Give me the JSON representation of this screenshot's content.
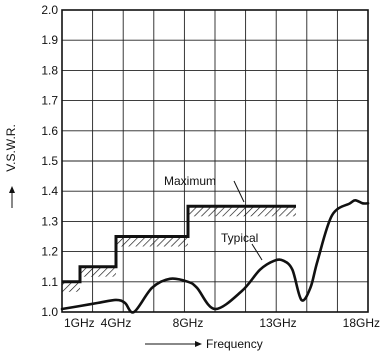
{
  "chart_data": {
    "type": "line",
    "xlabel": "Frequency",
    "ylabel": "V.S.W.R.",
    "x_tick_labels": [
      "1GHz",
      "4GHz",
      "8GHz",
      "13GHz",
      "18GHz"
    ],
    "x_tick_values": [
      1,
      4,
      8,
      13,
      18
    ],
    "ylim": [
      1.0,
      2.0
    ],
    "y_ticks": [
      "1.0",
      "1.1",
      "1.2",
      "1.3",
      "1.4",
      "1.5",
      "1.6",
      "1.7",
      "1.8",
      "1.9",
      "2.0"
    ],
    "grid": true,
    "series": [
      {
        "name": "Maximum",
        "style": "step",
        "x": [
          1,
          2,
          2,
          4,
          4,
          8,
          8,
          14
        ],
        "y": [
          1.1,
          1.1,
          1.15,
          1.15,
          1.25,
          1.25,
          1.35,
          1.35
        ]
      },
      {
        "name": "Typical",
        "style": "smooth",
        "x": [
          1,
          2,
          3,
          4,
          4.5,
          5,
          6,
          7,
          8,
          8.5,
          9.5,
          11,
          12,
          12.8,
          13.3,
          13.8,
          14.3,
          14.8,
          15.2,
          16,
          17,
          17.3,
          17.7,
          18
        ],
        "y": [
          1.01,
          1.02,
          1.03,
          1.04,
          1.03,
          1.0,
          1.08,
          1.11,
          1.1,
          1.08,
          1.01,
          1.07,
          1.14,
          1.17,
          1.17,
          1.14,
          1.04,
          1.08,
          1.17,
          1.32,
          1.36,
          1.37,
          1.36,
          1.36
        ]
      }
    ],
    "colors": {
      "ink": "#111111",
      "grid": "#222222"
    }
  }
}
